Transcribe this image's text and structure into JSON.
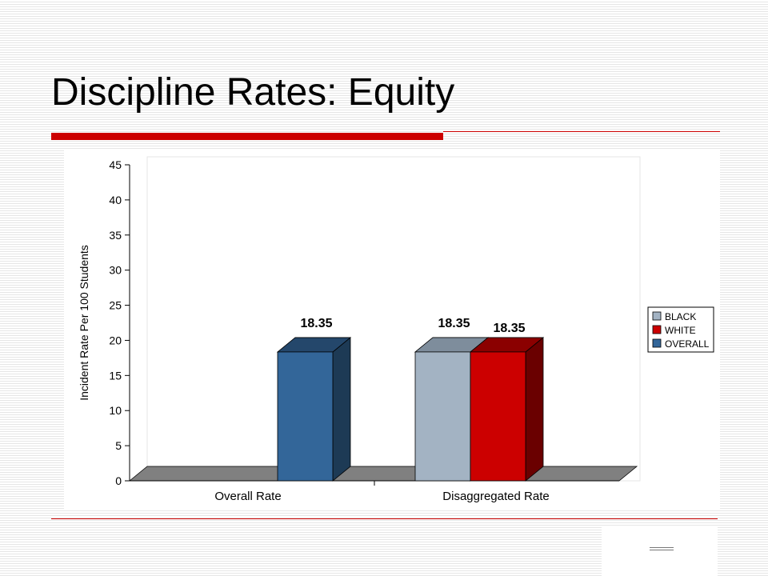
{
  "slide": {
    "title": "Discipline Rates: Equity"
  },
  "colors": {
    "accent_red": "#cc0000",
    "floor": "#808080"
  },
  "chart_data": {
    "type": "bar",
    "title": "",
    "ylabel": "Incident Rate Per 100 Students",
    "xlabel": "",
    "ylim": [
      0,
      45
    ],
    "yticks": [
      0,
      5,
      10,
      15,
      20,
      25,
      30,
      35,
      40,
      45
    ],
    "categories": [
      "Overall Rate",
      "Disaggregated Rate"
    ],
    "bars": [
      {
        "category": "Overall Rate",
        "series": "OVERALL",
        "value": 18.35,
        "label": "18.35"
      },
      {
        "category": "Disaggregated Rate",
        "series": "BLACK",
        "value": 18.35,
        "label": "18.35"
      },
      {
        "category": "Disaggregated Rate",
        "series": "WHITE",
        "value": 18.35,
        "label": "18.35"
      }
    ],
    "series": [
      {
        "name": "BLACK",
        "color": "#a3b3c3",
        "top": "#7e8d9c",
        "side": "#6a7785"
      },
      {
        "name": "WHITE",
        "color": "#cc0000",
        "top": "#8b0000",
        "side": "#6a0000"
      },
      {
        "name": "OVERALL",
        "color": "#336699",
        "top": "#24476b",
        "side": "#1d3a55"
      }
    ],
    "legend_position": "right",
    "grid": false,
    "style": "3d-column"
  }
}
